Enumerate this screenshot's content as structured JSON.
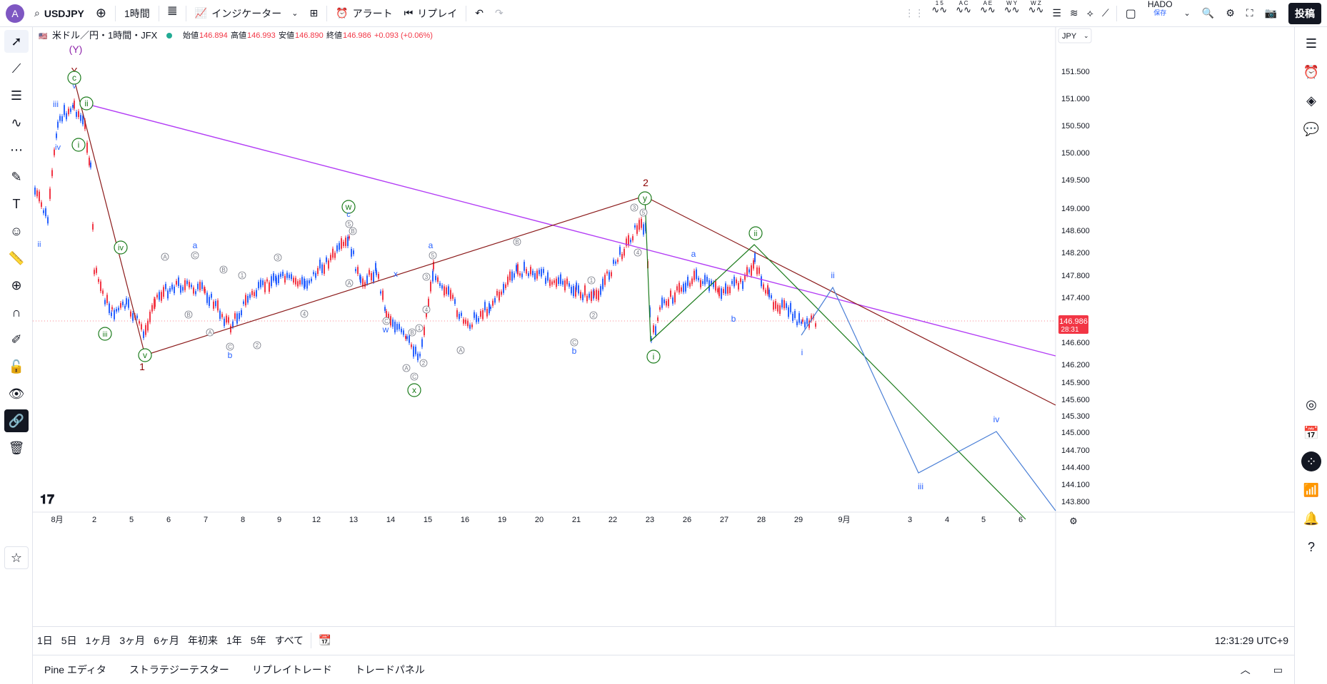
{
  "header": {
    "avatar_letter": "A",
    "symbol": "USDJPY",
    "interval": "1時間",
    "indicators_label": "インジケーター",
    "alert_label": "アラート",
    "replay_label": "リプレイ",
    "elliott_tools": [
      "1 5",
      "A C",
      "A E",
      "W Y",
      "W Z"
    ],
    "layout_name": "HADO",
    "layout_status": "保存",
    "post_label": "投稿"
  },
  "legend": {
    "symbol_desc": "米ドル／円・1時間・JFX",
    "open_label": "始値",
    "open": "146.894",
    "high_label": "高値",
    "high": "146.993",
    "low_label": "安値",
    "low": "146.890",
    "close_label": "終値",
    "close": "146.986",
    "change": "+0.093 (+0.06%)"
  },
  "price_axis": {
    "currency": "JPY",
    "ticks": [
      "151.500",
      "151.000",
      "150.500",
      "150.000",
      "149.500",
      "149.000",
      "148.600",
      "148.200",
      "147.800",
      "147.400",
      "146.600",
      "146.200",
      "145.900",
      "145.600",
      "145.300",
      "145.000",
      "144.700",
      "144.400",
      "144.100",
      "143.800"
    ],
    "current_price": "146.986",
    "countdown": "28:31"
  },
  "time_axis": {
    "ticks": [
      "8月",
      "2",
      "5",
      "6",
      "7",
      "8",
      "9",
      "12",
      "13",
      "14",
      "15",
      "16",
      "19",
      "20",
      "21",
      "22",
      "23",
      "26",
      "27",
      "28",
      "29",
      "9月",
      "3",
      "4",
      "5",
      "6"
    ]
  },
  "waves": {
    "Y_paren": "(Y)",
    "Y": "Y",
    "c": "c",
    "v": "v",
    "iii": "iii",
    "ii": "ii",
    "i": "i",
    "iv": "iv",
    "w": "w",
    "x": "x",
    "y": "y",
    "a": "a",
    "b": "b",
    "wave1": "1",
    "wave2": "2",
    "A": "A",
    "B": "B",
    "C": "C",
    "n1": "1",
    "n2": "2",
    "n3": "3",
    "n4": "4",
    "n5": "5"
  },
  "timeframes": [
    "1日",
    "5日",
    "1ヶ月",
    "3ヶ月",
    "6ヶ月",
    "年初来",
    "1年",
    "5年",
    "すべて"
  ],
  "clock": "12:31:29 UTC+9",
  "bottom_tabs": [
    "Pine エディタ",
    "ストラテジーテスター",
    "リプレイトレード",
    "トレードパネル"
  ],
  "colors": {
    "up": "#f23645",
    "down": "#2962ff",
    "purple_line": "#b33df5",
    "maroon_line": "#8b1a1a",
    "green_line": "#1b7b1b",
    "blue_line": "#4a7fd6",
    "wave_green": "#1b7b1b",
    "wave_blue": "#2962ff",
    "wave_maroon": "#8b0000",
    "wave_purple": "#8e24aa"
  }
}
